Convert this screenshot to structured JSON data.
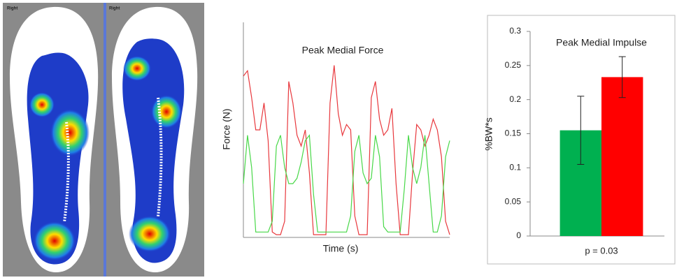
{
  "images": [
    {
      "label": "Right"
    },
    {
      "label": "Right"
    }
  ],
  "chart_data": [
    {
      "type": "line",
      "title": "Peak Medial Force",
      "xlabel": "Time (s)",
      "ylabel": "Force (N)",
      "x": [
        0,
        0.1,
        0.2,
        0.3,
        0.4,
        0.5,
        0.6,
        0.7,
        0.8,
        0.9,
        1.0,
        1.1,
        1.2,
        1.3,
        1.4,
        1.5,
        1.6,
        1.7,
        1.8,
        1.9,
        2.0,
        2.1,
        2.2,
        2.3,
        2.4,
        2.5,
        2.6,
        2.7,
        2.8,
        2.9,
        3.0,
        3.1,
        3.2,
        3.3,
        3.4,
        3.5,
        3.6,
        3.7,
        3.8,
        3.9,
        4.0,
        4.1,
        4.2,
        4.3,
        4.4,
        4.5,
        4.6,
        4.7,
        4.8,
        4.9,
        5.0
      ],
      "xlim": [
        0,
        5
      ],
      "ylim": [
        0,
        4
      ],
      "series": [
        {
          "color": "#e8383d",
          "values": [
            3.0,
            3.1,
            2.6,
            2.0,
            2.0,
            2.5,
            1.8,
            0.1,
            0.05,
            0.05,
            0.3,
            2.9,
            2.5,
            1.9,
            1.7,
            2.0,
            1.2,
            0.05,
            0.05,
            0.05,
            0.05,
            2.5,
            3.2,
            2.3,
            1.9,
            2.1,
            2.0,
            0.4,
            0.05,
            0.05,
            0.05,
            2.6,
            2.9,
            2.2,
            1.9,
            2.0,
            2.4,
            1.0,
            0.05,
            0.05,
            0.05,
            1.2,
            2.1,
            2.0,
            1.7,
            1.9,
            2.2,
            2.0,
            1.5,
            0.3,
            0.05
          ]
        },
        {
          "color": "#48d848",
          "values": [
            1.0,
            1.9,
            1.3,
            0.1,
            0.1,
            0.1,
            0.1,
            0.3,
            1.7,
            1.9,
            1.3,
            1.0,
            1.0,
            1.1,
            1.4,
            1.8,
            1.9,
            0.8,
            0.1,
            0.1,
            0.1,
            0.1,
            0.1,
            0.1,
            0.1,
            0.1,
            0.4,
            1.6,
            1.9,
            1.2,
            1.0,
            1.1,
            1.9,
            1.5,
            0.2,
            0.1,
            0.1,
            0.1,
            0.1,
            0.9,
            1.9,
            1.3,
            1.0,
            1.3,
            1.9,
            1.0,
            0.1,
            0.1,
            0.4,
            1.5,
            1.8
          ]
        }
      ]
    },
    {
      "type": "bar",
      "title": "Peak Medial Impulse",
      "ylabel": "%BW*s",
      "xlabel": "p = 0.03",
      "categories": [
        null,
        null
      ],
      "values": [
        0.155,
        0.233
      ],
      "errors": [
        0.05,
        0.03
      ],
      "colors": [
        "#00b050",
        "#ff0000"
      ],
      "ylim": [
        0,
        0.3
      ],
      "yticks": [
        0,
        0.05,
        0.1,
        0.15,
        0.2,
        0.25,
        0.3
      ]
    }
  ]
}
